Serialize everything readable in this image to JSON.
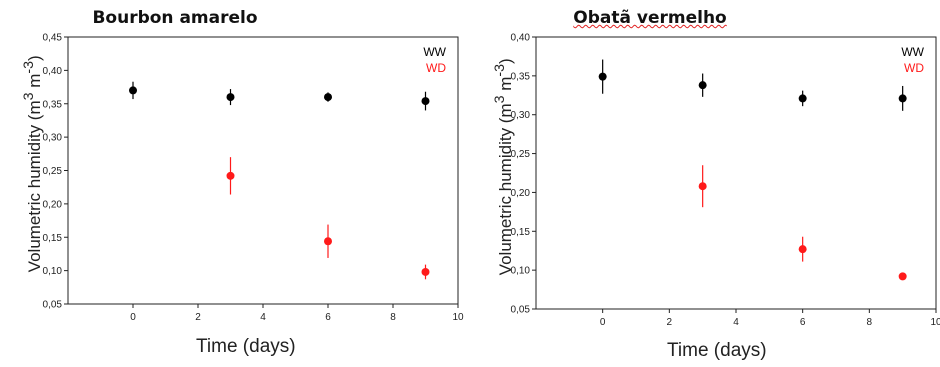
{
  "chart_data": [
    {
      "type": "scatter",
      "title": "Bourbon amarelo",
      "xlabel": "Time (days)",
      "ylabel": "Volumetric humidity (m³ m⁻³)",
      "xlim": [
        -2,
        10
      ],
      "ylim": [
        0.05,
        0.45
      ],
      "xticks": [
        "0",
        "2",
        "4",
        "6",
        "8",
        "10"
      ],
      "yticks": [
        "0,05",
        "0,10",
        "0,15",
        "0,20",
        "0,25",
        "0,30",
        "0,35",
        "0,40",
        "0,45"
      ],
      "legend_placement": "top-right",
      "grid": false,
      "series": [
        {
          "name": "WW",
          "color": "#000000",
          "x": [
            0,
            3,
            6,
            9
          ],
          "y": [
            0.37,
            0.36,
            0.36,
            0.354
          ],
          "err": [
            0.013,
            0.012,
            0.007,
            0.014
          ]
        },
        {
          "name": "WD",
          "color": "#ff1a1a",
          "x": [
            3,
            6,
            9
          ],
          "y": [
            0.242,
            0.144,
            0.098
          ],
          "err": [
            0.028,
            0.025,
            0.011
          ]
        }
      ]
    },
    {
      "type": "scatter",
      "title": "Obatã vermelho",
      "xlabel": "Time (days)",
      "ylabel": "Volumetric humidity (m³ m⁻³)",
      "xlim": [
        -2,
        10
      ],
      "ylim": [
        0.05,
        0.4
      ],
      "xticks": [
        "0",
        "2",
        "4",
        "6",
        "8",
        "10"
      ],
      "yticks": [
        "0,05",
        "0,10",
        "0,15",
        "0,20",
        "0,25",
        "0,30",
        "0,35",
        "0,40"
      ],
      "legend_placement": "top-right",
      "grid": false,
      "series": [
        {
          "name": "WW",
          "color": "#000000",
          "x": [
            0,
            3,
            6,
            9
          ],
          "y": [
            0.349,
            0.338,
            0.321,
            0.321
          ],
          "err": [
            0.022,
            0.015,
            0.01,
            0.016
          ]
        },
        {
          "name": "WD",
          "color": "#ff1a1a",
          "x": [
            3,
            6,
            9
          ],
          "y": [
            0.208,
            0.127,
            0.092
          ],
          "err": [
            0.027,
            0.016,
            0.003
          ]
        }
      ]
    }
  ]
}
